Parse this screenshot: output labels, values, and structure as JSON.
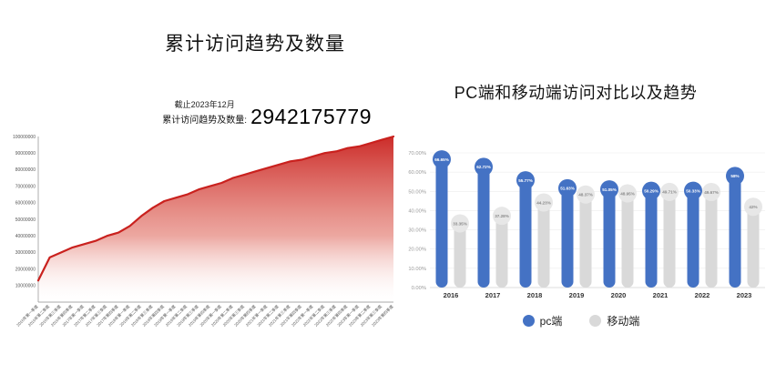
{
  "left_panel": {
    "annotation": {
      "asof": "截止2023年12月",
      "label": "累计访问趋势及数量:",
      "value": "2942175779"
    }
  },
  "chart_data": [
    {
      "type": "area",
      "title": "累计访问趋势及数量",
      "x": [
        "2016年第一季度",
        "2016年第二季度",
        "2016年第三季度",
        "2016年第四季度",
        "2017年第一季度",
        "2017年第二季度",
        "2017年第三季度",
        "2017年第四季度",
        "2018年第一季度",
        "2018年第二季度",
        "2018年第三季度",
        "2018年第四季度",
        "2019年第一季度",
        "2019年第二季度",
        "2019年第三季度",
        "2019年第四季度",
        "2020年第一季度",
        "2020年第二季度",
        "2020年第三季度",
        "2020年第四季度",
        "2021年第一季度",
        "2021年第二季度",
        "2021年第三季度",
        "2021年第四季度",
        "2022年第一季度",
        "2022年第二季度",
        "2022年第三季度",
        "2022年第四季度",
        "2023年第一季度",
        "2023年第二季度",
        "2023年第三季度",
        "2023年第四季度"
      ],
      "values": [
        13000000,
        27000000,
        30000000,
        33000000,
        35000000,
        37000000,
        40000000,
        42000000,
        46000000,
        52000000,
        57000000,
        61000000,
        63000000,
        65000000,
        68000000,
        70000000,
        72000000,
        75000000,
        77000000,
        79000000,
        81000000,
        83000000,
        85000000,
        86000000,
        88000000,
        90000000,
        91000000,
        93000000,
        94000000,
        96000000,
        98000000,
        100000000
      ],
      "ylim": [
        0,
        100000000
      ],
      "yticks": [
        10000000,
        20000000,
        30000000,
        40000000,
        50000000,
        60000000,
        70000000,
        80000000,
        90000000,
        100000000
      ],
      "line_color": "#c9211e",
      "fill_gradient_top": "#c9211e",
      "fill_gradient_bottom": "#ffffff",
      "grid": false,
      "x_labels_rotated": true
    },
    {
      "type": "bar",
      "title": "PC端和移动端访问对比以及趋势",
      "categories": [
        "2016",
        "2017",
        "2018",
        "2019",
        "2020",
        "2021",
        "2022",
        "2023"
      ],
      "series": [
        {
          "name": "pc端",
          "color": "#4472c4",
          "bubble_color": "#4472c4",
          "label_color": "#ffffff",
          "values": [
            66.65,
            62.72,
            55.77,
            51.63,
            51.05,
            50.29,
            50.33,
            58
          ],
          "labels": [
            "66.65%",
            "62.72%",
            "55.77%",
            "51.63%",
            "51.05%",
            "50.29%",
            "50.33%",
            "58%"
          ]
        },
        {
          "name": "移动端",
          "color": "#d9d9d9",
          "bubble_color": "#e7e7e7",
          "label_color": "#8a8a8a",
          "values": [
            33.35,
            37.28,
            44.23,
            48.37,
            48.95,
            49.71,
            49.67,
            42
          ],
          "labels": [
            "33.35%",
            "37.28%",
            "44.23%",
            "48.37%",
            "48.95%",
            "49.71%",
            "49.67%",
            "42%"
          ]
        }
      ],
      "yticks_labels": [
        "0.00%",
        "10.00%",
        "20.00%",
        "30.00%",
        "40.00%",
        "50.00%",
        "60.00%",
        "70.00%"
      ],
      "ylim": [
        0,
        70
      ],
      "legend_position": "bottom",
      "grid": true
    }
  ]
}
